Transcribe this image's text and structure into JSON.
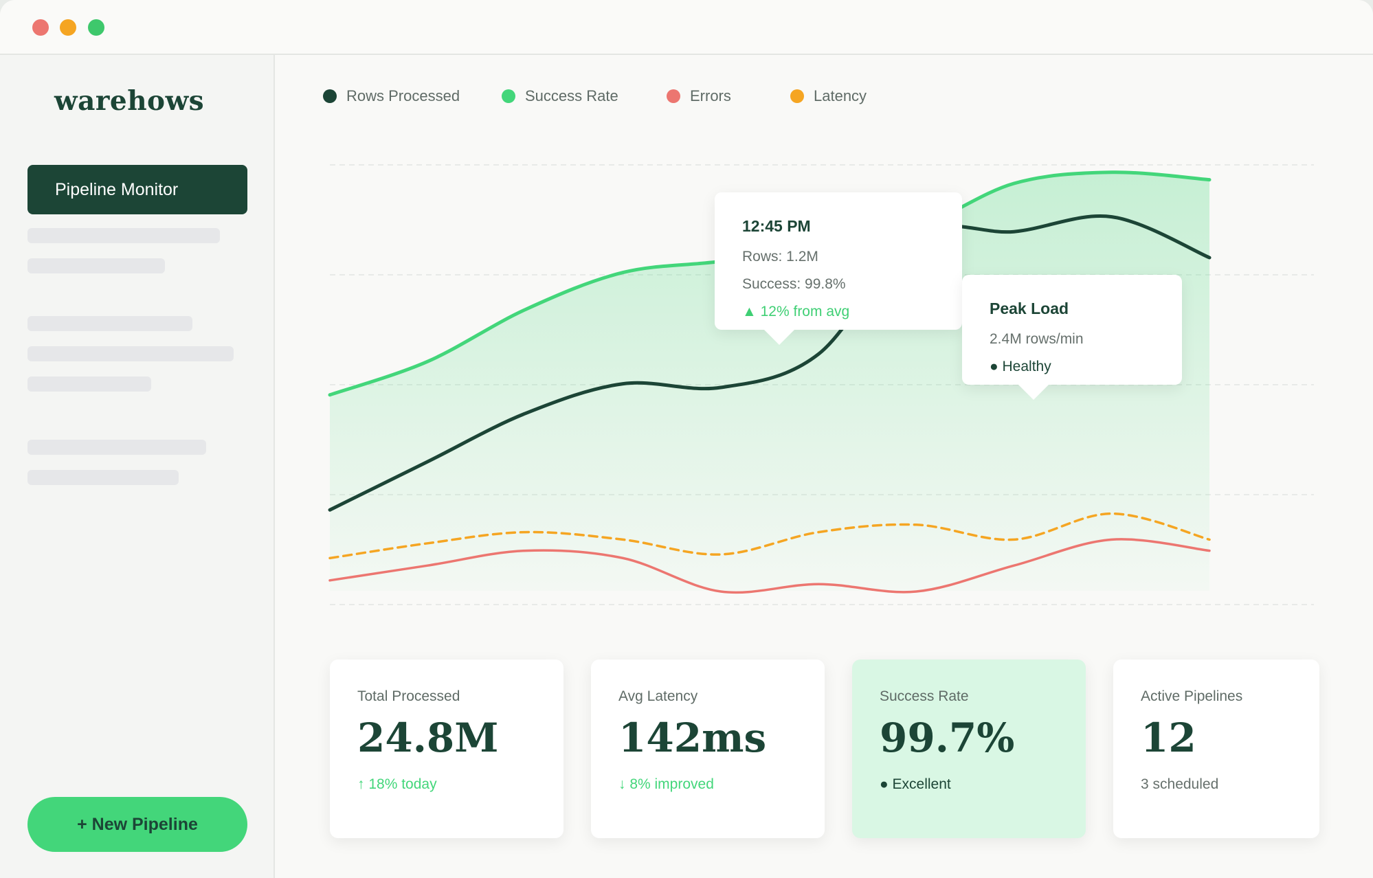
{
  "app": {
    "logo": "warehows",
    "nav_active": "Pipeline Monitor",
    "new_pipeline": "+ New Pipeline"
  },
  "legend": [
    {
      "label": "Rows Processed",
      "color": "#1c4536"
    },
    {
      "label": "Success Rate",
      "color": "#43d67a"
    },
    {
      "label": "Errors",
      "color": "#ec7670"
    },
    {
      "label": "Latency",
      "color": "#f5a522"
    }
  ],
  "tooltips": {
    "point": {
      "title": "12:45 PM",
      "rows": "Rows: 1.2M",
      "success": "Success: 99.8%",
      "delta": "▲ 12% from avg"
    },
    "peak": {
      "title": "Peak Load",
      "rate": "2.4M rows/min",
      "status": "● Healthy"
    }
  },
  "cards": [
    {
      "label": "Total Processed",
      "value": "24.8M",
      "sub": "↑ 18% today"
    },
    {
      "label": "Avg Latency",
      "value": "142ms",
      "sub": "↓ 8% improved"
    },
    {
      "label": "Success Rate",
      "value": "99.7%",
      "sub": "● Excellent"
    },
    {
      "label": "Active Pipelines",
      "value": "12",
      "sub": "3 scheduled"
    }
  ],
  "chart_data": {
    "type": "line",
    "grid": true,
    "ylim": [
      0,
      100
    ],
    "series": [
      {
        "name": "Rows Processed",
        "color": "#1c4536",
        "style": "solid",
        "values": [
          7,
          20,
          33,
          41,
          40,
          49,
          81,
          82,
          86,
          75
        ]
      },
      {
        "name": "Success Rate",
        "color": "#43d67a",
        "style": "solid",
        "area": true,
        "values": [
          38,
          47,
          61,
          71,
          74,
          78,
          83,
          95,
          98,
          96
        ]
      },
      {
        "name": "Errors",
        "color": "#ec7670",
        "style": "solid",
        "values": [
          -12,
          -8,
          -4,
          -6,
          -15,
          -13,
          -15,
          -8,
          -1,
          -4
        ]
      },
      {
        "name": "Latency",
        "color": "#f5a522",
        "style": "dashed",
        "values": [
          -6,
          -2,
          1,
          -1,
          -5,
          1,
          3,
          -1,
          6,
          -1
        ]
      }
    ]
  }
}
